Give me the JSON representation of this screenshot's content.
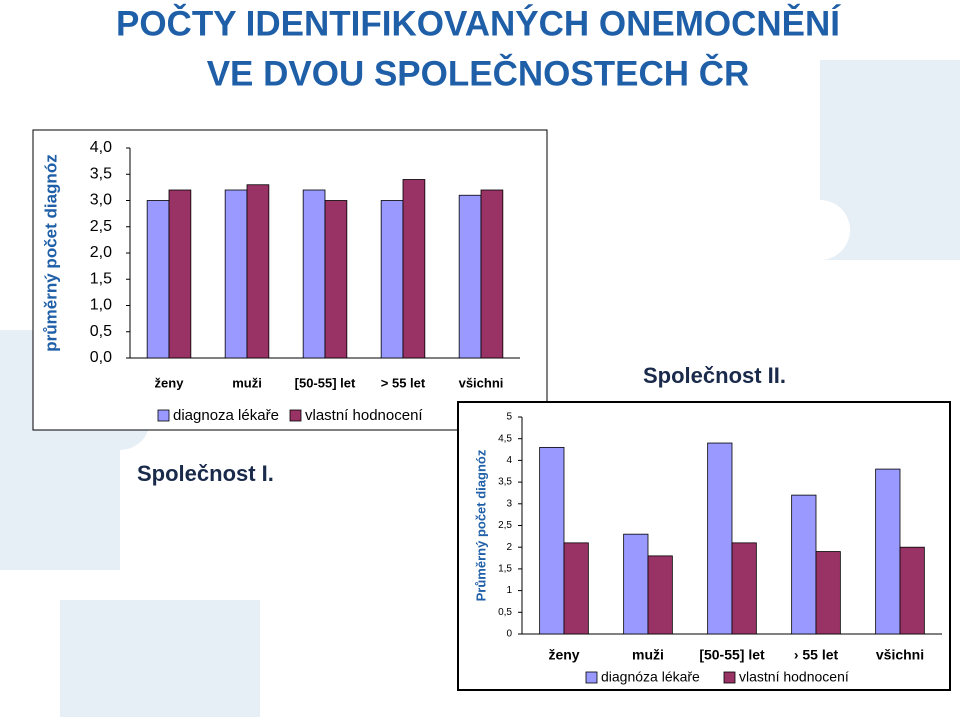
{
  "title": [
    "POČTY IDENTIFIKOVANÝCH ONEMOCNĚNÍ",
    "VE DVOU SPOLEČNOSTECH ČR"
  ],
  "chart_data": [
    {
      "type": "bar",
      "caption": "Společnost I.",
      "y_label": "průměrný počet diagnóz",
      "categories": [
        "ženy",
        "muži",
        "[50-55] let",
        "> 55 let",
        "všichni"
      ],
      "series": [
        {
          "name": "diagnoza lékaře",
          "color": "#9999ff",
          "values": [
            3.0,
            3.2,
            3.2,
            3.0,
            3.1
          ]
        },
        {
          "name": "vlastní hodnocení",
          "color": "#993366",
          "values": [
            3.2,
            3.3,
            3.0,
            3.4,
            3.2
          ]
        }
      ],
      "ylim": [
        0,
        4
      ],
      "yticks": [
        {
          "value": 0,
          "label": "0,0"
        },
        {
          "value": 0.5,
          "label": "0,5"
        },
        {
          "value": 1,
          "label": "1,0"
        },
        {
          "value": 1.5,
          "label": "1,5"
        },
        {
          "value": 2,
          "label": "2,0"
        },
        {
          "value": 2.5,
          "label": "2,5"
        },
        {
          "value": 3,
          "label": "3,0"
        },
        {
          "value": 3.5,
          "label": "3,5"
        },
        {
          "value": 4,
          "label": "4,0"
        }
      ]
    },
    {
      "type": "bar",
      "caption": "Společnost II.",
      "y_label": "Průměrný počet diagnóz",
      "categories": [
        "ženy",
        "muži",
        "[50-55] let",
        "› 55 let",
        "všichni"
      ],
      "series": [
        {
          "name": "diagnóza lékaře",
          "color": "#9999ff",
          "values": [
            4.3,
            2.3,
            4.4,
            3.2,
            3.8
          ]
        },
        {
          "name": "vlastní hodnocení",
          "color": "#993366",
          "values": [
            2.1,
            1.8,
            2.1,
            1.9,
            2.0
          ]
        }
      ],
      "ylim": [
        0,
        5
      ],
      "yticks": [
        0,
        {
          "value": 0.5,
          "label": "0,5"
        },
        1,
        {
          "value": 1.5,
          "label": "1,5"
        },
        2,
        {
          "value": 2.5,
          "label": "2,5"
        },
        3,
        {
          "value": 3.5,
          "label": "3,5"
        },
        4,
        {
          "value": 4.5,
          "label": "4,5"
        },
        5
      ]
    }
  ]
}
